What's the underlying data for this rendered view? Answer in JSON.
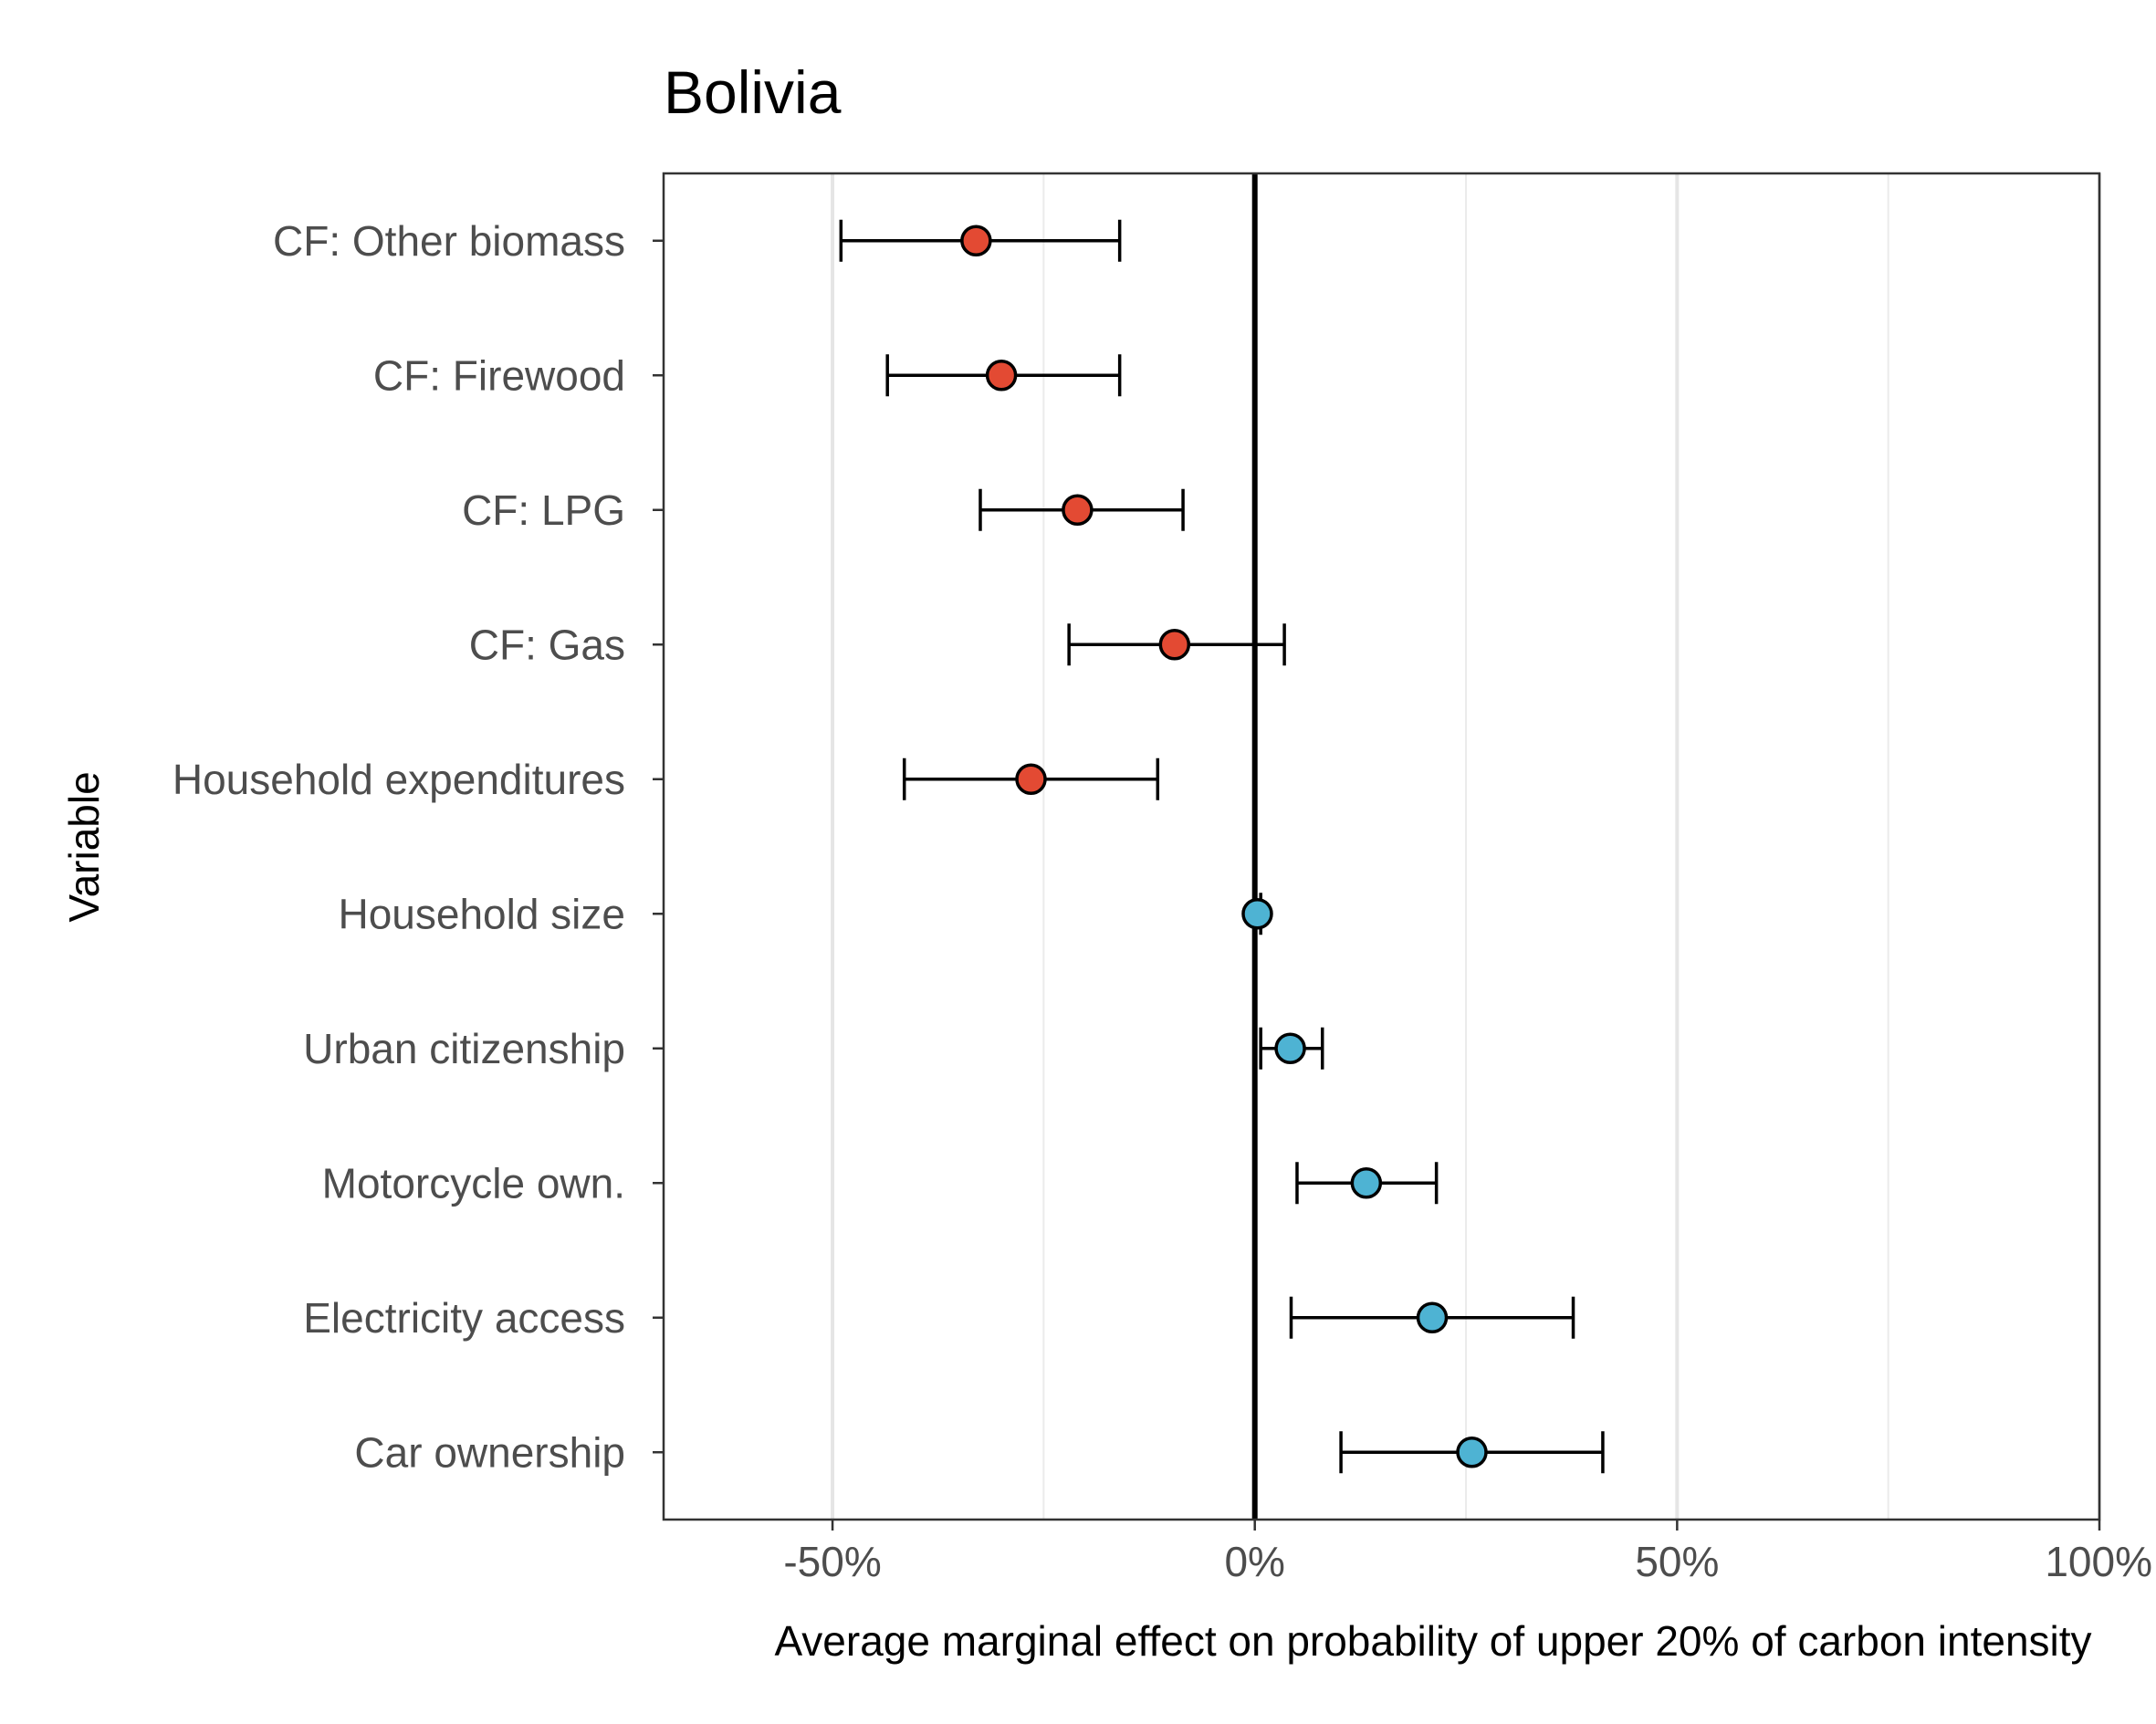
{
  "chart_data": {
    "type": "scatter",
    "title": "Bolivia",
    "xlabel": "Average marginal effect on probability of upper 20% of carbon intensity",
    "ylabel": "Variable",
    "xlim": [
      -0.7,
      1.0
    ],
    "x_ticks": [
      -0.5,
      0.0,
      0.5,
      1.0
    ],
    "x_tick_labels": [
      "-50%",
      "0%",
      "50%",
      "100%"
    ],
    "minor_gridlines_x": [
      -0.25,
      0.25,
      0.75
    ],
    "reference_line_x": 0.0,
    "grid": true,
    "legend": "none",
    "colors": {
      "negative": "#e34a33",
      "positive": "#4eb3d3",
      "outline": "#000000"
    },
    "points": [
      {
        "label": "CF: Other biomass",
        "estimate": -0.33,
        "lower": -0.49,
        "upper": -0.16,
        "sign": "negative"
      },
      {
        "label": "CF: Firewood",
        "estimate": -0.3,
        "lower": -0.435,
        "upper": -0.16,
        "sign": "negative"
      },
      {
        "label": "CF: LPG",
        "estimate": -0.21,
        "lower": -0.325,
        "upper": -0.085,
        "sign": "negative"
      },
      {
        "label": "CF: Gas",
        "estimate": -0.095,
        "lower": -0.22,
        "upper": 0.035,
        "sign": "negative"
      },
      {
        "label": "Household expenditures",
        "estimate": -0.265,
        "lower": -0.415,
        "upper": -0.115,
        "sign": "negative"
      },
      {
        "label": "Household size",
        "estimate": 0.003,
        "lower": 0.0,
        "upper": 0.007,
        "sign": "positive"
      },
      {
        "label": "Urban citizenship",
        "estimate": 0.042,
        "lower": 0.007,
        "upper": 0.08,
        "sign": "positive"
      },
      {
        "label": "Motorcycle own.",
        "estimate": 0.132,
        "lower": 0.05,
        "upper": 0.215,
        "sign": "positive"
      },
      {
        "label": "Electricity access",
        "estimate": 0.21,
        "lower": 0.043,
        "upper": 0.377,
        "sign": "positive"
      },
      {
        "label": "Car ownership",
        "estimate": 0.257,
        "lower": 0.102,
        "upper": 0.412,
        "sign": "positive"
      }
    ]
  }
}
